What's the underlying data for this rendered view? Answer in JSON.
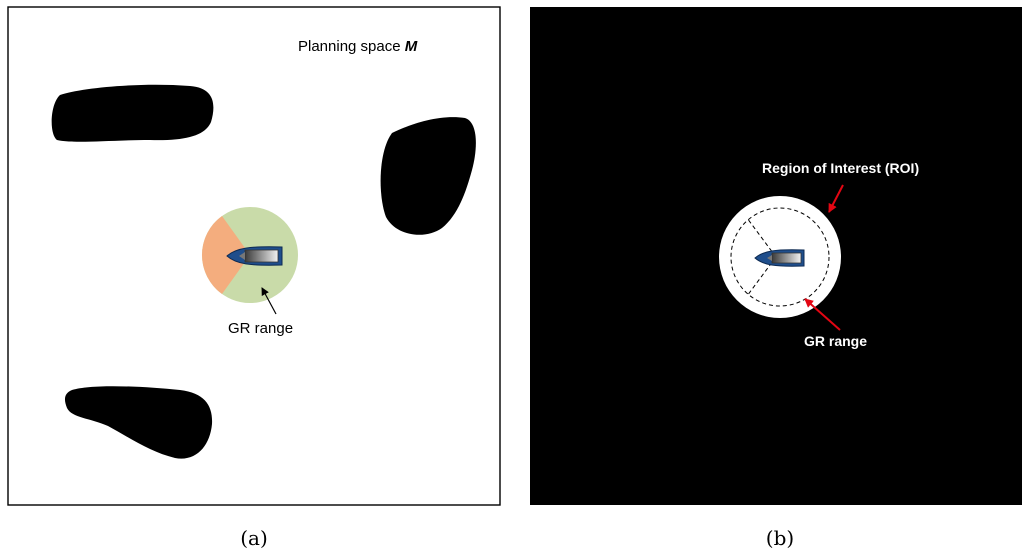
{
  "panel_a": {
    "title_prefix": "Planning space ",
    "title_symbol": "M",
    "gr_label": "GR range",
    "caption": "(a)",
    "colors": {
      "background": "#ffffff",
      "obstacle": "#000000",
      "gr_range": "#c9dba9",
      "blind_sector": "#f4ad7e",
      "vessel_hull": "#1f4e8c"
    }
  },
  "panel_b": {
    "roi_label": "Region of Interest (ROI)",
    "gr_label": "GR range",
    "caption": "(b)",
    "colors": {
      "background": "#000000",
      "roi": "#ffffff",
      "arrow": "#e30613"
    }
  }
}
